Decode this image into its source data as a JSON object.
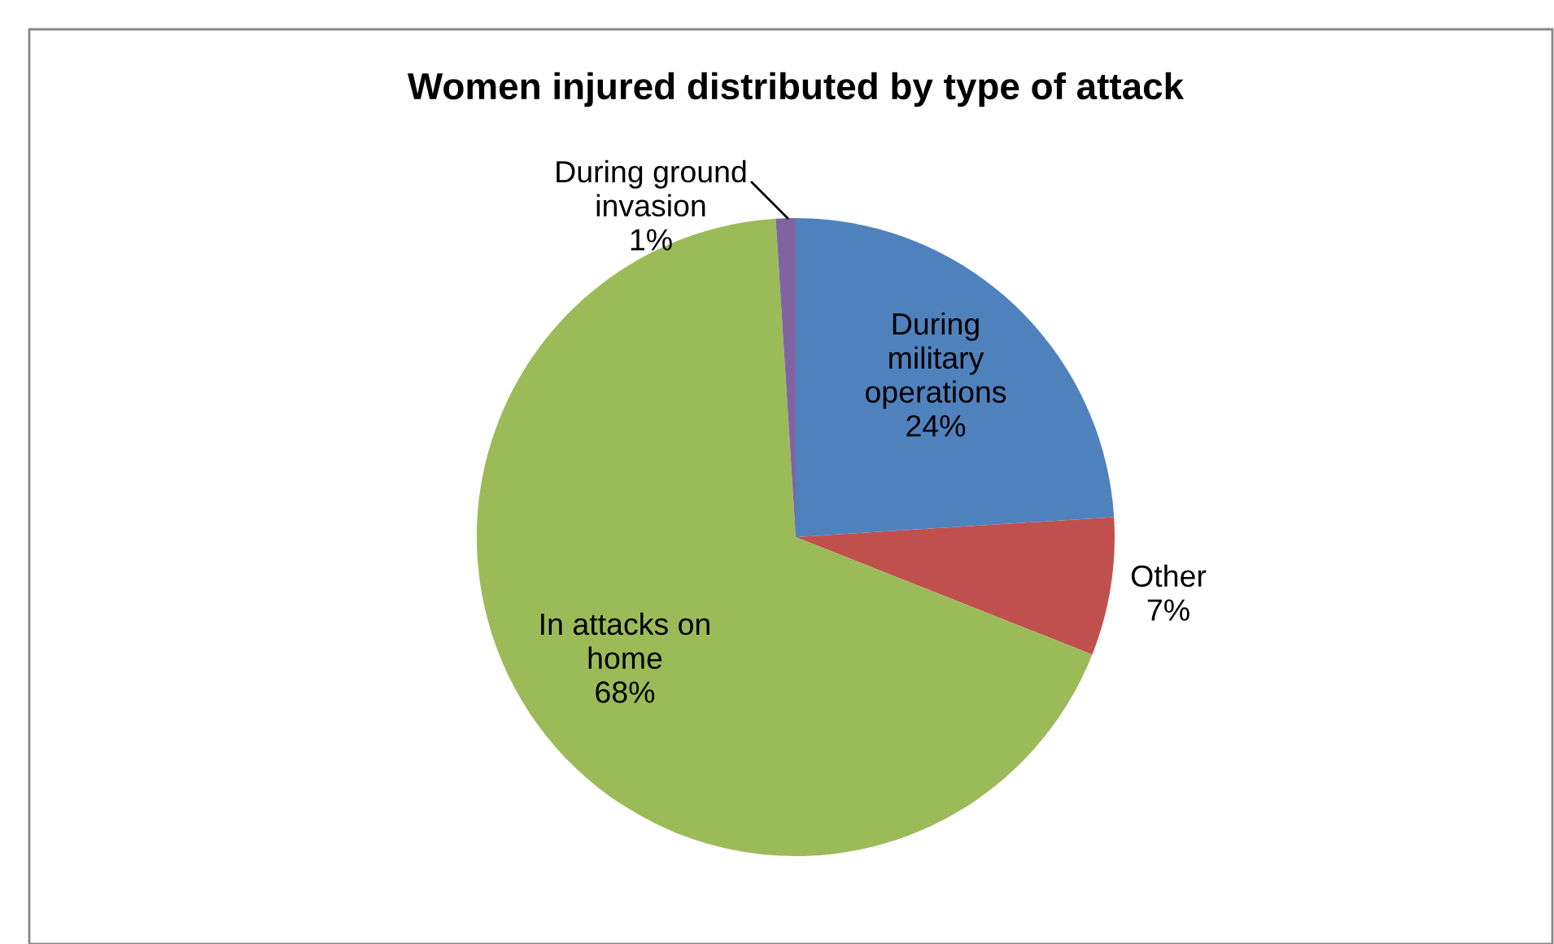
{
  "chart_data": {
    "type": "pie",
    "title": "Women injured distributed by type of attack",
    "categories": [
      "During\nmilitary\noperations",
      "Other",
      "In attacks on\nhome",
      "During ground\ninvasion"
    ],
    "values": [
      24,
      7,
      68,
      1
    ],
    "value_labels": [
      "24%",
      "7%",
      "68%",
      "1%"
    ],
    "colors": [
      "#4f81bd",
      "#c0504d",
      "#9bbb59",
      "#8064a2"
    ],
    "legend": false
  }
}
